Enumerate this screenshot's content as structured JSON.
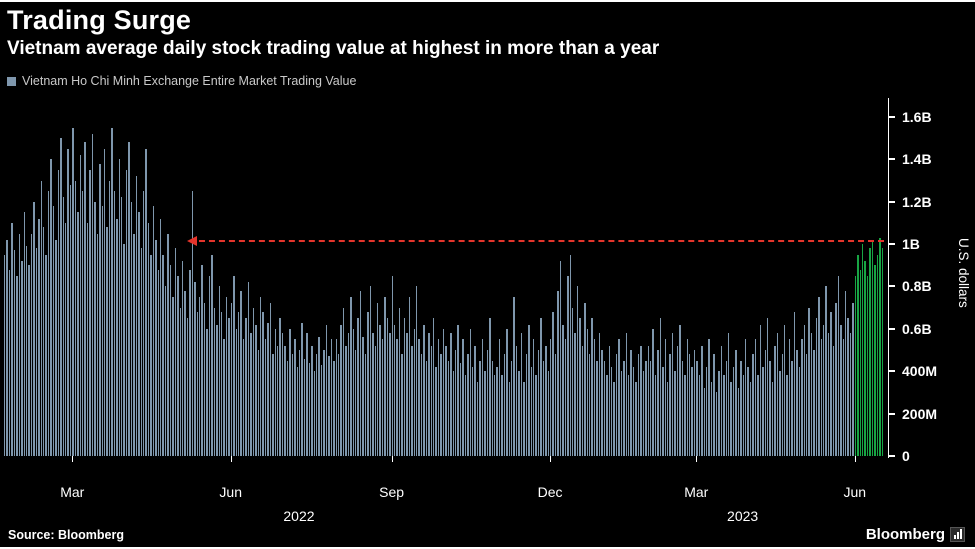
{
  "header": {
    "title": "Trading Surge",
    "subtitle": "Vietnam average daily stock trading value at highest in more than a year"
  },
  "legend": {
    "label": "Vietnam Ho Chi Minh Exchange Entire Market Trading Value",
    "swatch_color": "#7f97ad"
  },
  "footer": {
    "source": "Source: Bloomberg",
    "brand": "Bloomberg"
  },
  "chart_data": {
    "type": "bar",
    "title": "Trading Surge",
    "subtitle": "Vietnam average daily stock trading value at highest in more than a year",
    "xlabel": "",
    "ylabel": "U.S. dollars",
    "unit": "USD (B = billions, M = millions)",
    "ylim": [
      0,
      1.68
    ],
    "grid": false,
    "legend_position": "top-left",
    "y_ticks": [
      {
        "label": "1.6B",
        "value": 1.6
      },
      {
        "label": "1.4B",
        "value": 1.4
      },
      {
        "label": "1.2B",
        "value": 1.2
      },
      {
        "label": "1B",
        "value": 1.0
      },
      {
        "label": "0.8B",
        "value": 0.8
      },
      {
        "label": "0.6B",
        "value": 0.6
      },
      {
        "label": "400M",
        "value": 0.4
      },
      {
        "label": "200M",
        "value": 0.2
      },
      {
        "label": "0",
        "value": 0
      }
    ],
    "x_ticks": [
      {
        "label": "Mar",
        "index": 28
      },
      {
        "label": "Jun",
        "index": 93
      },
      {
        "label": "Sep",
        "index": 159
      },
      {
        "label": "Dec",
        "index": 224
      },
      {
        "label": "Mar",
        "index": 284
      },
      {
        "label": "Jun",
        "index": 349
      }
    ],
    "year_labels": [
      {
        "label": "2022",
        "index": 121
      },
      {
        "label": "2023",
        "index": 303
      }
    ],
    "highlight": {
      "from_index": 349,
      "color": "#18a544",
      "meaning": "most recent month (Jun 2023) highlighted green"
    },
    "annotation": {
      "type": "dashed-arrow-left",
      "value": 1.02,
      "start_frac": 0.21,
      "color": "#e5342b"
    },
    "series": [
      {
        "name": "Vietnam Ho Chi Minh Exchange Entire Market Trading Value",
        "color": "#7f97ad",
        "values": [
          0.95,
          1.02,
          0.88,
          1.1,
          0.97,
          0.85,
          1.05,
          0.92,
          1.15,
          0.99,
          0.9,
          1.05,
          1.2,
          0.98,
          1.12,
          1.3,
          1.08,
          0.95,
          1.25,
          1.4,
          1.18,
          1.02,
          1.35,
          1.5,
          1.22,
          1.1,
          1.45,
          1.28,
          1.55,
          1.3,
          1.15,
          1.42,
          1.25,
          1.48,
          1.1,
          1.35,
          1.52,
          1.2,
          1.05,
          1.38,
          1.18,
          1.45,
          1.08,
          1.3,
          1.55,
          1.25,
          1.12,
          1.4,
          1.22,
          1.0,
          1.35,
          1.48,
          1.2,
          1.05,
          1.32,
          1.15,
          0.98,
          1.25,
          1.45,
          1.1,
          0.95,
          1.18,
          1.02,
          0.88,
          1.12,
          0.95,
          0.8,
          1.05,
          0.9,
          0.75,
          0.98,
          0.85,
          0.7,
          0.92,
          0.78,
          0.65,
          0.88,
          1.25,
          0.82,
          0.68,
          0.75,
          0.9,
          0.72,
          0.6,
          0.85,
          0.95,
          0.7,
          0.62,
          0.8,
          0.68,
          0.55,
          0.75,
          0.65,
          0.72,
          0.85,
          0.6,
          0.68,
          0.78,
          0.55,
          0.65,
          0.82,
          0.58,
          0.7,
          0.62,
          0.5,
          0.75,
          0.68,
          0.55,
          0.63,
          0.72,
          0.48,
          0.6,
          0.52,
          0.65,
          0.58,
          0.52,
          0.45,
          0.6,
          0.48,
          0.55,
          0.42,
          0.5,
          0.63,
          0.46,
          0.58,
          0.44,
          0.52,
          0.4,
          0.48,
          0.56,
          0.43,
          0.5,
          0.62,
          0.47,
          0.55,
          0.45,
          0.55,
          0.48,
          0.62,
          0.7,
          0.52,
          0.58,
          0.75,
          0.6,
          0.5,
          0.65,
          0.78,
          0.56,
          0.48,
          0.68,
          0.8,
          0.58,
          0.52,
          0.72,
          0.62,
          0.55,
          0.75,
          0.65,
          0.58,
          0.85,
          0.62,
          0.55,
          0.7,
          0.48,
          0.65,
          0.58,
          0.75,
          0.52,
          0.6,
          0.8,
          0.55,
          0.48,
          0.62,
          0.45,
          0.58,
          0.52,
          0.65,
          0.42,
          0.55,
          0.48,
          0.6,
          0.52,
          0.45,
          0.58,
          0.4,
          0.5,
          0.62,
          0.44,
          0.55,
          0.38,
          0.48,
          0.6,
          0.42,
          0.52,
          0.35,
          0.45,
          0.55,
          0.4,
          0.5,
          0.65,
          0.45,
          0.38,
          0.42,
          0.55,
          0.38,
          0.48,
          0.6,
          0.35,
          0.45,
          0.75,
          0.52,
          0.4,
          0.58,
          0.35,
          0.48,
          0.62,
          0.42,
          0.55,
          0.38,
          0.5,
          0.65,
          0.45,
          0.52,
          0.4,
          0.55,
          0.68,
          0.48,
          0.78,
          0.92,
          0.62,
          0.55,
          0.85,
          0.95,
          0.7,
          0.58,
          0.8,
          0.65,
          0.52,
          0.72,
          0.6,
          0.48,
          0.65,
          0.55,
          0.45,
          0.58,
          0.5,
          0.45,
          0.38,
          0.52,
          0.42,
          0.35,
          0.48,
          0.55,
          0.4,
          0.45,
          0.58,
          0.38,
          0.5,
          0.42,
          0.35,
          0.48,
          0.52,
          0.4,
          0.45,
          0.52,
          0.45,
          0.6,
          0.38,
          0.5,
          0.65,
          0.42,
          0.55,
          0.35,
          0.48,
          0.58,
          0.4,
          0.52,
          0.62,
          0.45,
          0.38,
          0.55,
          0.48,
          0.42,
          0.5,
          0.45,
          0.38,
          0.52,
          0.32,
          0.42,
          0.55,
          0.35,
          0.48,
          0.3,
          0.4,
          0.52,
          0.38,
          0.45,
          0.58,
          0.35,
          0.42,
          0.5,
          0.32,
          0.45,
          0.38,
          0.55,
          0.42,
          0.35,
          0.48,
          0.55,
          0.38,
          0.62,
          0.42,
          0.5,
          0.65,
          0.45,
          0.35,
          0.52,
          0.58,
          0.4,
          0.48,
          0.62,
          0.38,
          0.55,
          0.45,
          0.68,
          0.5,
          0.42,
          0.55,
          0.62,
          0.48,
          0.7,
          0.58,
          0.5,
          0.65,
          0.75,
          0.55,
          0.62,
          0.8,
          0.58,
          0.68,
          0.52,
          0.72,
          0.85,
          0.62,
          0.55,
          0.78,
          0.65,
          0.58,
          0.72,
          0.85,
          0.95,
          0.88,
          1.0,
          0.92,
          0.85,
          0.98,
          1.02,
          0.9,
          0.95,
          1.03,
          0.98
        ]
      }
    ]
  }
}
